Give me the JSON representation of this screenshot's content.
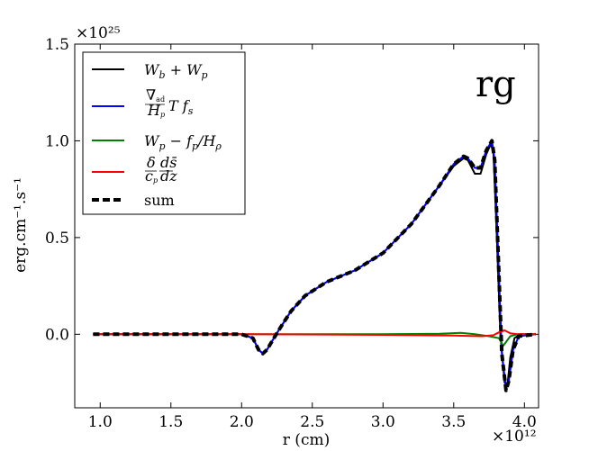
{
  "chart_data": {
    "type": "line",
    "xlabel": "r (cm)",
    "ylabel": "erg.cm⁻¹.s⁻¹",
    "x_multiplier": "×10¹²",
    "y_multiplier": "×10²⁵",
    "annotation": "rg",
    "xlim": [
      0.82,
      4.1
    ],
    "ylim": [
      -0.38,
      1.5
    ],
    "xticks": [
      1.0,
      1.5,
      2.0,
      2.5,
      3.0,
      3.5,
      4.0
    ],
    "xtick_labels": [
      "1.0",
      "1.5",
      "2.0",
      "2.5",
      "3.0",
      "3.5",
      "4.0"
    ],
    "yticks": [
      0.0,
      0.5,
      1.0,
      1.5
    ],
    "ytick_labels": [
      "0.0",
      "0.5",
      "1.0",
      "1.5"
    ],
    "grid": false,
    "legend_position": "top-left",
    "series": [
      {
        "name": "W_b + W_p",
        "color": "#000000",
        "style": "solid",
        "points": [
          [
            0.95,
            0.0
          ],
          [
            1.5,
            0.0
          ],
          [
            2.0,
            0.0
          ],
          [
            2.08,
            -0.02
          ],
          [
            2.12,
            -0.08
          ],
          [
            2.15,
            -0.1
          ],
          [
            2.18,
            -0.08
          ],
          [
            2.22,
            -0.03
          ],
          [
            2.27,
            0.03
          ],
          [
            2.35,
            0.12
          ],
          [
            2.45,
            0.2
          ],
          [
            2.6,
            0.27
          ],
          [
            2.8,
            0.33
          ],
          [
            3.0,
            0.42
          ],
          [
            3.2,
            0.57
          ],
          [
            3.4,
            0.77
          ],
          [
            3.5,
            0.87
          ],
          [
            3.57,
            0.91
          ],
          [
            3.6,
            0.9
          ],
          [
            3.65,
            0.83
          ],
          [
            3.69,
            0.83
          ],
          [
            3.73,
            0.93
          ],
          [
            3.76,
            0.98
          ],
          [
            3.78,
            0.95
          ],
          [
            3.8,
            0.6
          ],
          [
            3.83,
            0.0
          ],
          [
            3.86,
            -0.25
          ],
          [
            3.88,
            -0.26
          ],
          [
            3.9,
            -0.12
          ],
          [
            3.93,
            -0.02
          ],
          [
            3.97,
            0.0
          ],
          [
            4.08,
            0.0
          ]
        ]
      },
      {
        "name": "(∇ad/Hp) T fs",
        "color": "#0000ff",
        "style": "solid",
        "points": [
          [
            0.95,
            0.0
          ],
          [
            1.5,
            0.0
          ],
          [
            2.0,
            0.0
          ],
          [
            2.08,
            -0.02
          ],
          [
            2.12,
            -0.08
          ],
          [
            2.15,
            -0.1
          ],
          [
            2.18,
            -0.08
          ],
          [
            2.22,
            -0.03
          ],
          [
            2.27,
            0.03
          ],
          [
            2.35,
            0.12
          ],
          [
            2.45,
            0.2
          ],
          [
            2.6,
            0.27
          ],
          [
            2.8,
            0.33
          ],
          [
            3.0,
            0.42
          ],
          [
            3.2,
            0.57
          ],
          [
            3.4,
            0.77
          ],
          [
            3.5,
            0.88
          ],
          [
            3.57,
            0.92
          ],
          [
            3.6,
            0.91
          ],
          [
            3.65,
            0.86
          ],
          [
            3.69,
            0.86
          ],
          [
            3.73,
            0.95
          ],
          [
            3.77,
            1.0
          ],
          [
            3.79,
            0.9
          ],
          [
            3.81,
            0.5
          ],
          [
            3.84,
            -0.1
          ],
          [
            3.87,
            -0.28
          ],
          [
            3.89,
            -0.24
          ],
          [
            3.92,
            -0.08
          ],
          [
            3.96,
            -0.01
          ],
          [
            4.08,
            0.0
          ]
        ]
      },
      {
        "name": "W_p − f_p/H_ρ",
        "color": "#008000",
        "style": "solid",
        "points": [
          [
            0.95,
            0.0
          ],
          [
            2.0,
            0.0
          ],
          [
            3.0,
            0.0
          ],
          [
            3.4,
            0.003
          ],
          [
            3.55,
            0.007
          ],
          [
            3.65,
            0.0
          ],
          [
            3.75,
            -0.01
          ],
          [
            3.82,
            -0.02
          ],
          [
            3.85,
            -0.06
          ],
          [
            3.87,
            -0.04
          ],
          [
            3.9,
            -0.01
          ],
          [
            3.95,
            0.0
          ],
          [
            4.08,
            0.0
          ]
        ]
      },
      {
        "name": "(δ/cp)(ds̄/dz)",
        "color": "#ff0000",
        "style": "solid",
        "points": [
          [
            0.95,
            0.0
          ],
          [
            2.0,
            0.0
          ],
          [
            3.0,
            -0.003
          ],
          [
            3.5,
            -0.007
          ],
          [
            3.7,
            -0.01
          ],
          [
            3.78,
            -0.005
          ],
          [
            3.82,
            0.01
          ],
          [
            3.86,
            0.02
          ],
          [
            3.9,
            0.005
          ],
          [
            3.95,
            0.0
          ],
          [
            4.08,
            0.0
          ]
        ]
      },
      {
        "name": "sum",
        "color": "#000000",
        "style": "dashed",
        "points": [
          [
            0.95,
            0.0
          ],
          [
            1.5,
            0.0
          ],
          [
            2.0,
            0.0
          ],
          [
            2.08,
            -0.02
          ],
          [
            2.12,
            -0.08
          ],
          [
            2.15,
            -0.1
          ],
          [
            2.18,
            -0.08
          ],
          [
            2.22,
            -0.03
          ],
          [
            2.27,
            0.03
          ],
          [
            2.35,
            0.12
          ],
          [
            2.45,
            0.2
          ],
          [
            2.6,
            0.27
          ],
          [
            2.8,
            0.33
          ],
          [
            3.0,
            0.42
          ],
          [
            3.2,
            0.57
          ],
          [
            3.4,
            0.77
          ],
          [
            3.5,
            0.88
          ],
          [
            3.57,
            0.92
          ],
          [
            3.6,
            0.91
          ],
          [
            3.65,
            0.86
          ],
          [
            3.69,
            0.86
          ],
          [
            3.73,
            0.95
          ],
          [
            3.77,
            1.0
          ],
          [
            3.79,
            0.9
          ],
          [
            3.81,
            0.5
          ],
          [
            3.84,
            -0.1
          ],
          [
            3.87,
            -0.29
          ],
          [
            3.89,
            -0.24
          ],
          [
            3.92,
            -0.08
          ],
          [
            3.96,
            -0.01
          ],
          [
            4.08,
            0.0
          ]
        ]
      }
    ]
  }
}
